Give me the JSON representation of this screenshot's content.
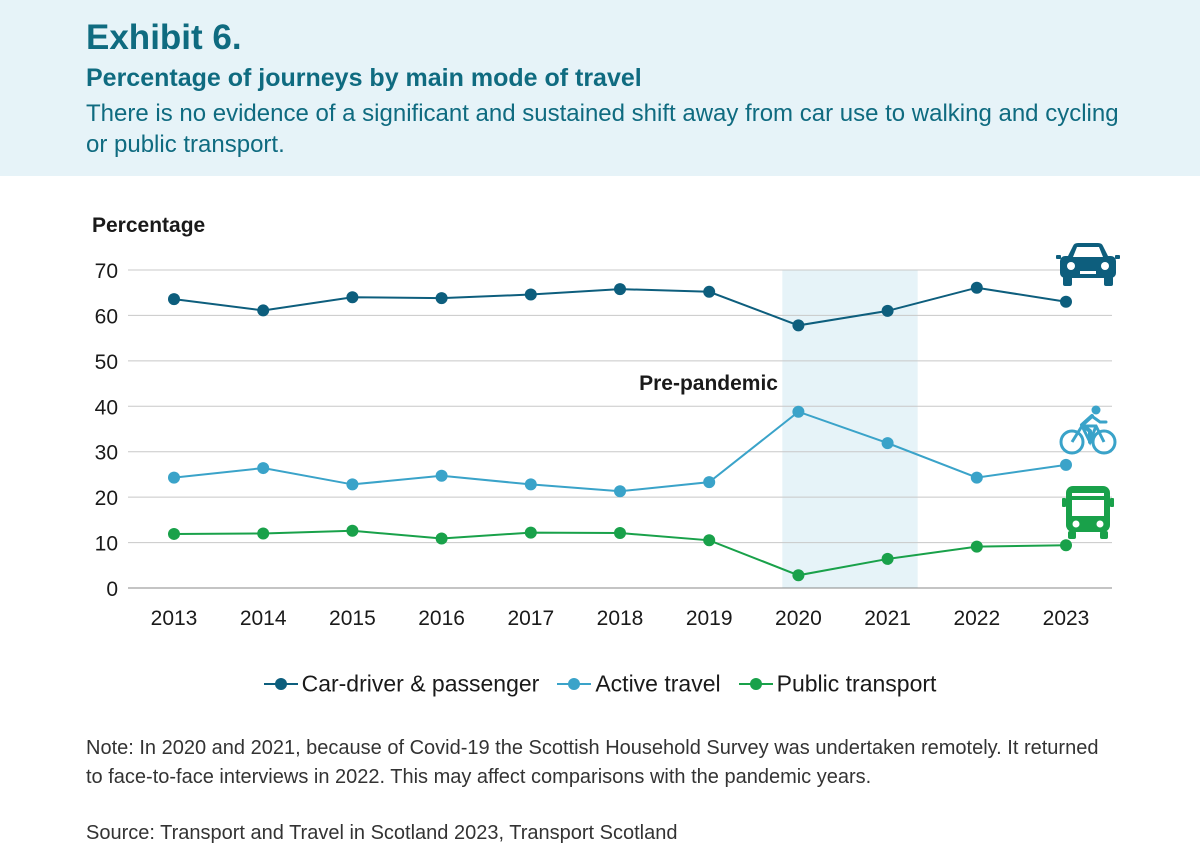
{
  "header": {
    "exhibit": "Exhibit 6.",
    "title": "Percentage of journeys by main mode of travel",
    "subtitle": "There is no evidence of a significant and sustained shift away from car use to walking and cycling or public transport."
  },
  "chart_data": {
    "type": "line",
    "ylabel": "Percentage",
    "xlabel": "",
    "ylim": [
      0,
      70
    ],
    "yticks": [
      0,
      10,
      20,
      30,
      40,
      50,
      60,
      70
    ],
    "grid": true,
    "legend_position": "bottom",
    "x": [
      "2013",
      "2014",
      "2015",
      "2016",
      "2017",
      "2018",
      "2019",
      "2020",
      "2021",
      "2022",
      "2023"
    ],
    "series": [
      {
        "name": "Car-driver & passenger",
        "color": "#0d5e7d",
        "icon": "car-icon",
        "values": [
          63.6,
          61.1,
          64,
          63.8,
          64.6,
          65.8,
          65.2,
          57.8,
          61,
          66.1,
          63
        ]
      },
      {
        "name": "Active travel",
        "color": "#3aa3c9",
        "icon": "bicycle-icon",
        "values": [
          24.3,
          26.4,
          22.8,
          24.7,
          22.8,
          21.3,
          23.3,
          38.8,
          31.9,
          24.3,
          27.1
        ]
      },
      {
        "name": "Public transport",
        "color": "#19a14a",
        "icon": "bus-icon",
        "values": [
          11.9,
          12,
          12.6,
          10.9,
          12.2,
          12.1,
          10.5,
          2.8,
          6.4,
          9.1,
          9.4
        ]
      }
    ],
    "annotation": {
      "text": "Pre-pandemic",
      "shaded_x": [
        "2020",
        "2021"
      ],
      "shade_color": "#e6f3f8"
    }
  },
  "footer": {
    "note": "Note: In 2020 and 2021, because of Covid-19 the Scottish Household Survey was undertaken remotely. It returned to face-to-face interviews in 2022. This may affect comparisons with the pandemic years.",
    "source": "Source: Transport and Travel in Scotland 2023, Transport Scotland"
  }
}
